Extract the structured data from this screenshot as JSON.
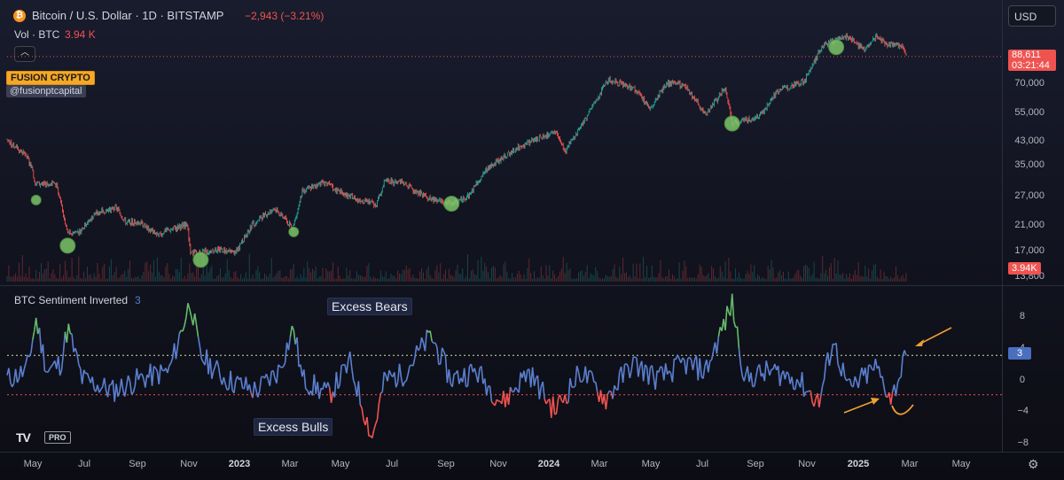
{
  "header": {
    "symbol_title": "Bitcoin / U.S. Dollar · 1D · BITSTAMP",
    "change": "−2,943 (−3.21%)",
    "volume_label": "Vol · BTC",
    "volume_value": "3.94 K",
    "coin_icon": "bitcoin-icon",
    "currency_button": "USD"
  },
  "watermark": {
    "brand": "FUSION CRYPTO",
    "handle": "@fusionptcapital"
  },
  "price_pane": {
    "price_labels": [
      "70,000",
      "55,000",
      "43,000",
      "35,000",
      "27,000",
      "21,000",
      "17,000",
      "13,800"
    ],
    "last_price": "88,611",
    "countdown": "03:21:44",
    "volume_tag": "3.94K"
  },
  "indicator_pane": {
    "title": "BTC Sentiment Inverted",
    "value": "3",
    "annotation_top": "Excess Bears",
    "annotation_bottom": "Excess Bulls",
    "y_labels": [
      "8",
      "4",
      "0",
      "−4",
      "−8"
    ],
    "current_tag": "3"
  },
  "time_axis": {
    "labels": [
      {
        "text": "May",
        "bold": false
      },
      {
        "text": "Jul",
        "bold": false
      },
      {
        "text": "Sep",
        "bold": false
      },
      {
        "text": "Nov",
        "bold": false
      },
      {
        "text": "2023",
        "bold": true
      },
      {
        "text": "Mar",
        "bold": false
      },
      {
        "text": "May",
        "bold": false
      },
      {
        "text": "Jul",
        "bold": false
      },
      {
        "text": "Sep",
        "bold": false
      },
      {
        "text": "Nov",
        "bold": false
      },
      {
        "text": "2024",
        "bold": true
      },
      {
        "text": "Mar",
        "bold": false
      },
      {
        "text": "May",
        "bold": false
      },
      {
        "text": "Jul",
        "bold": false
      },
      {
        "text": "Sep",
        "bold": false
      },
      {
        "text": "Nov",
        "bold": false
      },
      {
        "text": "2025",
        "bold": true
      },
      {
        "text": "Mar",
        "bold": false
      },
      {
        "text": "May",
        "bold": false
      }
    ]
  },
  "branding": {
    "logo": "TV",
    "badge": "PRO"
  },
  "colors": {
    "up": "#26a69a",
    "down": "#ef5350",
    "indicator": "#5b7fcf",
    "indicator_high": "#66bb6a",
    "indicator_low": "#ef5350",
    "marker": "#7cc56a",
    "arrow": "#f0a030",
    "upper_line": "#c8e6a0",
    "lower_line": "#ef5350"
  },
  "chart_data": [
    {
      "type": "candlestick",
      "title": "Bitcoin / U.S. Dollar · 1D · BITSTAMP",
      "scale": "log",
      "x_start": "2022-04-08",
      "x_end": "2025-02-25",
      "price_path": [
        [
          "2022-04-08",
          43500
        ],
        [
          "2022-05-01",
          38000
        ],
        [
          "2022-05-08",
          33500
        ],
        [
          "2022-05-10",
          30000
        ],
        [
          "2022-05-15",
          29800
        ],
        [
          "2022-06-05",
          30000
        ],
        [
          "2022-06-14",
          22000
        ],
        [
          "2022-06-18",
          19500
        ],
        [
          "2022-07-01",
          19800
        ],
        [
          "2022-07-20",
          23200
        ],
        [
          "2022-08-14",
          24300
        ],
        [
          "2022-08-25",
          21500
        ],
        [
          "2022-09-10",
          21500
        ],
        [
          "2022-10-01",
          19300
        ],
        [
          "2022-11-05",
          21200
        ],
        [
          "2022-11-09",
          16500
        ],
        [
          "2022-12-15",
          17000
        ],
        [
          "2023-01-01",
          16600
        ],
        [
          "2023-01-20",
          21000
        ],
        [
          "2023-02-15",
          24300
        ],
        [
          "2023-03-09",
          20500
        ],
        [
          "2023-03-20",
          28000
        ],
        [
          "2023-04-14",
          30400
        ],
        [
          "2023-05-10",
          27000
        ],
        [
          "2023-06-15",
          25100
        ],
        [
          "2023-06-25",
          30500
        ],
        [
          "2023-07-15",
          30200
        ],
        [
          "2023-08-17",
          26200
        ],
        [
          "2023-09-11",
          25100
        ],
        [
          "2023-10-01",
          27000
        ],
        [
          "2023-10-24",
          34500
        ],
        [
          "2023-12-05",
          42000
        ],
        [
          "2024-01-11",
          46500
        ],
        [
          "2024-01-23",
          39500
        ],
        [
          "2024-02-15",
          52000
        ],
        [
          "2024-03-13",
          73000
        ],
        [
          "2024-04-13",
          67000
        ],
        [
          "2024-05-01",
          57000
        ],
        [
          "2024-05-20",
          71000
        ],
        [
          "2024-06-10",
          69000
        ],
        [
          "2024-07-05",
          54000
        ],
        [
          "2024-07-28",
          68000
        ],
        [
          "2024-08-05",
          50000
        ],
        [
          "2024-09-06",
          53000
        ],
        [
          "2024-09-27",
          66000
        ],
        [
          "2024-10-29",
          72000
        ],
        [
          "2024-11-13",
          90000
        ],
        [
          "2024-11-22",
          99000
        ],
        [
          "2024-12-17",
          106000
        ],
        [
          "2025-01-08",
          93000
        ],
        [
          "2025-01-21",
          106000
        ],
        [
          "2025-02-03",
          98000
        ],
        [
          "2025-02-20",
          97000
        ],
        [
          "2025-02-25",
          88611
        ]
      ],
      "last_value": 88611,
      "sentiment_markers": [
        {
          "date": "2022-05-12",
          "price": 26000,
          "size": "small"
        },
        {
          "date": "2022-06-18",
          "price": 17600,
          "size": "large"
        },
        {
          "date": "2022-11-21",
          "price": 15600,
          "size": "large"
        },
        {
          "date": "2023-03-10",
          "price": 19800,
          "size": "small"
        },
        {
          "date": "2023-09-11",
          "price": 25200,
          "size": "large"
        },
        {
          "date": "2024-08-05",
          "price": 50000,
          "size": "large"
        },
        {
          "date": "2024-12-05",
          "price": 96000,
          "size": "large"
        }
      ]
    },
    {
      "type": "line",
      "title": "BTC Sentiment Inverted",
      "ylim": [
        -9,
        11
      ],
      "upper_threshold": 3,
      "lower_threshold": -2,
      "last_value": 3,
      "series_points": [
        [
          "2022-04-08",
          0
        ],
        [
          "2022-05-01",
          1
        ],
        [
          "2022-05-12",
          7.5
        ],
        [
          "2022-05-25",
          1
        ],
        [
          "2022-06-10",
          2
        ],
        [
          "2022-06-18",
          6.5
        ],
        [
          "2022-07-05",
          0
        ],
        [
          "2022-08-10",
          -1.5
        ],
        [
          "2022-09-10",
          0
        ],
        [
          "2022-10-15",
          1
        ],
        [
          "2022-11-09",
          10
        ],
        [
          "2022-11-20",
          3
        ],
        [
          "2022-12-20",
          0
        ],
        [
          "2023-01-25",
          -1.5
        ],
        [
          "2023-02-20",
          1
        ],
        [
          "2023-03-10",
          6.5
        ],
        [
          "2023-03-20",
          0
        ],
        [
          "2023-04-20",
          -2
        ],
        [
          "2023-05-15",
          2
        ],
        [
          "2023-06-10",
          -7.5
        ],
        [
          "2023-06-25",
          0
        ],
        [
          "2023-07-15",
          0.5
        ],
        [
          "2023-08-18",
          5.5
        ],
        [
          "2023-09-10",
          0
        ],
        [
          "2023-10-10",
          1
        ],
        [
          "2023-11-10",
          -3
        ],
        [
          "2023-12-10",
          1
        ],
        [
          "2024-01-10",
          -4
        ],
        [
          "2024-02-10",
          1
        ],
        [
          "2024-03-10",
          -2.5
        ],
        [
          "2024-04-10",
          2
        ],
        [
          "2024-05-10",
          0
        ],
        [
          "2024-06-10",
          2
        ],
        [
          "2024-07-05",
          1
        ],
        [
          "2024-08-05",
          9.5
        ],
        [
          "2024-08-20",
          0
        ],
        [
          "2024-09-20",
          1
        ],
        [
          "2024-10-20",
          0
        ],
        [
          "2024-11-15",
          -3
        ],
        [
          "2024-12-01",
          5
        ],
        [
          "2024-12-20",
          -1.5
        ],
        [
          "2025-01-20",
          1.5
        ],
        [
          "2025-02-08",
          -2.5
        ],
        [
          "2025-02-25",
          3
        ]
      ]
    }
  ]
}
